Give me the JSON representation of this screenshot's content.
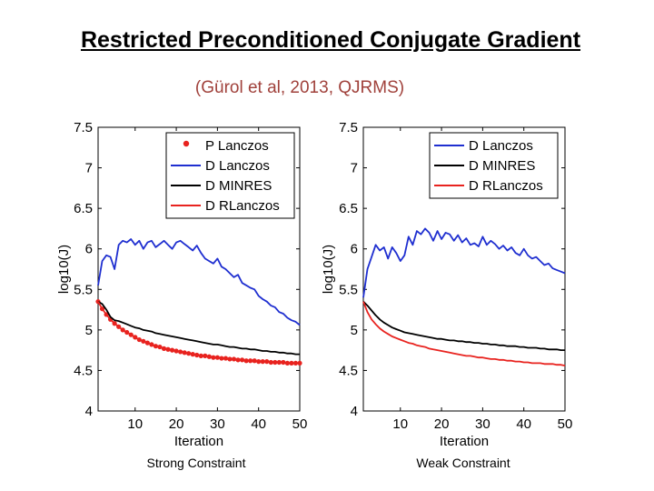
{
  "slide": {
    "title": "Restricted Preconditioned Conjugate Gradient",
    "subtitle": "(Gürol et al, 2013, QJRMS)",
    "captions": [
      "Strong Constraint",
      "Weak Constraint"
    ]
  },
  "colors": {
    "blue": "#1f2fd0",
    "black": "#000000",
    "red": "#e8231f",
    "subtitle": "#a0413b"
  },
  "chart_data": [
    {
      "type": "line",
      "title": "",
      "xlabel": "Iteration",
      "ylabel": "log10(J)",
      "xlim": [
        1,
        50
      ],
      "ylim": [
        4,
        7.5
      ],
      "xticks": [
        "10",
        "20",
        "30",
        "40",
        "50"
      ],
      "yticks": [
        "4",
        "4.5",
        "5",
        "5.5",
        "6",
        "6.5",
        "7",
        "7.5"
      ],
      "legend_position": "top-right",
      "series": [
        {
          "name": "P Lanczos",
          "color": "#e8231f",
          "style": "markers",
          "x": [
            1,
            2,
            3,
            4,
            5,
            6,
            7,
            8,
            9,
            10,
            11,
            12,
            13,
            14,
            15,
            16,
            17,
            18,
            19,
            20,
            21,
            22,
            23,
            24,
            25,
            26,
            27,
            28,
            29,
            30,
            31,
            32,
            33,
            34,
            35,
            36,
            37,
            38,
            39,
            40,
            41,
            42,
            43,
            44,
            45,
            46,
            47,
            48,
            49,
            50
          ],
          "y": [
            5.35,
            5.26,
            5.19,
            5.13,
            5.08,
            5.04,
            5.0,
            4.97,
            4.94,
            4.91,
            4.88,
            4.86,
            4.84,
            4.82,
            4.8,
            4.79,
            4.77,
            4.76,
            4.75,
            4.74,
            4.73,
            4.72,
            4.71,
            4.7,
            4.69,
            4.68,
            4.68,
            4.67,
            4.66,
            4.66,
            4.65,
            4.65,
            4.64,
            4.64,
            4.63,
            4.63,
            4.62,
            4.62,
            4.62,
            4.61,
            4.61,
            4.61,
            4.6,
            4.6,
            4.6,
            4.6,
            4.59,
            4.59,
            4.59,
            4.59
          ]
        },
        {
          "name": "D Lanczos",
          "color": "#1f2fd0",
          "style": "line",
          "x": [
            1,
            2,
            3,
            4,
            5,
            6,
            7,
            8,
            9,
            10,
            11,
            12,
            13,
            14,
            15,
            16,
            17,
            18,
            19,
            20,
            21,
            22,
            23,
            24,
            25,
            26,
            27,
            28,
            29,
            30,
            31,
            32,
            33,
            34,
            35,
            36,
            37,
            38,
            39,
            40,
            41,
            42,
            43,
            44,
            45,
            46,
            47,
            48,
            49,
            50
          ],
          "y": [
            5.55,
            5.85,
            5.92,
            5.9,
            5.75,
            6.05,
            6.1,
            6.08,
            6.12,
            6.05,
            6.1,
            6.0,
            6.08,
            6.1,
            6.02,
            6.06,
            6.1,
            6.05,
            6.0,
            6.08,
            6.1,
            6.06,
            6.02,
            5.98,
            6.04,
            5.95,
            5.88,
            5.85,
            5.82,
            5.88,
            5.78,
            5.75,
            5.7,
            5.65,
            5.68,
            5.58,
            5.55,
            5.52,
            5.5,
            5.42,
            5.38,
            5.35,
            5.3,
            5.28,
            5.22,
            5.2,
            5.15,
            5.12,
            5.1,
            5.06
          ]
        },
        {
          "name": "D MINRES",
          "color": "#000000",
          "style": "line",
          "x": [
            1,
            2,
            3,
            4,
            5,
            6,
            7,
            8,
            9,
            10,
            11,
            12,
            13,
            14,
            15,
            16,
            17,
            18,
            19,
            20,
            21,
            22,
            23,
            24,
            25,
            26,
            27,
            28,
            29,
            30,
            31,
            32,
            33,
            34,
            35,
            36,
            37,
            38,
            39,
            40,
            41,
            42,
            43,
            44,
            45,
            46,
            47,
            48,
            49,
            50
          ],
          "y": [
            5.35,
            5.32,
            5.25,
            5.16,
            5.12,
            5.11,
            5.09,
            5.07,
            5.05,
            5.03,
            5.02,
            5.0,
            4.99,
            4.98,
            4.96,
            4.95,
            4.94,
            4.93,
            4.92,
            4.91,
            4.9,
            4.89,
            4.88,
            4.87,
            4.86,
            4.85,
            4.84,
            4.83,
            4.82,
            4.82,
            4.81,
            4.8,
            4.79,
            4.79,
            4.78,
            4.77,
            4.77,
            4.76,
            4.76,
            4.75,
            4.74,
            4.74,
            4.73,
            4.73,
            4.72,
            4.72,
            4.71,
            4.71,
            4.7,
            4.7
          ]
        },
        {
          "name": "D RLanczos",
          "color": "#e8231f",
          "style": "line",
          "x": [
            1,
            2,
            3,
            4,
            5,
            6,
            7,
            8,
            9,
            10,
            11,
            12,
            13,
            14,
            15,
            16,
            17,
            18,
            19,
            20,
            21,
            22,
            23,
            24,
            25,
            26,
            27,
            28,
            29,
            30,
            31,
            32,
            33,
            34,
            35,
            36,
            37,
            38,
            39,
            40,
            41,
            42,
            43,
            44,
            45,
            46,
            47,
            48,
            49,
            50
          ],
          "y": [
            5.35,
            5.26,
            5.19,
            5.13,
            5.08,
            5.04,
            5.0,
            4.97,
            4.94,
            4.91,
            4.88,
            4.86,
            4.84,
            4.82,
            4.8,
            4.79,
            4.77,
            4.76,
            4.75,
            4.74,
            4.73,
            4.72,
            4.71,
            4.7,
            4.69,
            4.68,
            4.68,
            4.67,
            4.66,
            4.66,
            4.65,
            4.65,
            4.64,
            4.64,
            4.63,
            4.63,
            4.62,
            4.62,
            4.62,
            4.61,
            4.61,
            4.61,
            4.6,
            4.6,
            4.6,
            4.6,
            4.59,
            4.59,
            4.59,
            4.59
          ]
        }
      ]
    },
    {
      "type": "line",
      "title": "",
      "xlabel": "Iteration",
      "ylabel": "log10(J)",
      "xlim": [
        1,
        50
      ],
      "ylim": [
        4,
        7.5
      ],
      "xticks": [
        "10",
        "20",
        "30",
        "40",
        "50"
      ],
      "yticks": [
        "4",
        "4.5",
        "5",
        "5.5",
        "6",
        "6.5",
        "7",
        "7.5"
      ],
      "legend_position": "top-right",
      "series": [
        {
          "name": "D Lanczos",
          "color": "#1f2fd0",
          "style": "line",
          "x": [
            1,
            2,
            3,
            4,
            5,
            6,
            7,
            8,
            9,
            10,
            11,
            12,
            13,
            14,
            15,
            16,
            17,
            18,
            19,
            20,
            21,
            22,
            23,
            24,
            25,
            26,
            27,
            28,
            29,
            30,
            31,
            32,
            33,
            34,
            35,
            36,
            37,
            38,
            39,
            40,
            41,
            42,
            43,
            44,
            45,
            46,
            47,
            48,
            49,
            50
          ],
          "y": [
            5.4,
            5.75,
            5.9,
            6.05,
            5.98,
            6.02,
            5.88,
            6.02,
            5.95,
            5.85,
            5.92,
            6.15,
            6.05,
            6.22,
            6.18,
            6.25,
            6.2,
            6.1,
            6.22,
            6.12,
            6.2,
            6.18,
            6.1,
            6.17,
            6.08,
            6.13,
            6.05,
            6.07,
            6.03,
            6.15,
            6.05,
            6.1,
            6.06,
            6.0,
            6.04,
            5.98,
            6.02,
            5.95,
            5.92,
            6.0,
            5.92,
            5.88,
            5.9,
            5.85,
            5.8,
            5.82,
            5.76,
            5.74,
            5.72,
            5.7
          ]
        },
        {
          "name": "D MINRES",
          "color": "#000000",
          "style": "line",
          "x": [
            1,
            2,
            3,
            4,
            5,
            6,
            7,
            8,
            9,
            10,
            11,
            12,
            13,
            14,
            15,
            16,
            17,
            18,
            19,
            20,
            21,
            22,
            23,
            24,
            25,
            26,
            27,
            28,
            29,
            30,
            31,
            32,
            33,
            34,
            35,
            36,
            37,
            38,
            39,
            40,
            41,
            42,
            43,
            44,
            45,
            46,
            47,
            48,
            49,
            50
          ],
          "y": [
            5.35,
            5.3,
            5.24,
            5.18,
            5.13,
            5.09,
            5.06,
            5.03,
            5.01,
            4.99,
            4.97,
            4.96,
            4.95,
            4.94,
            4.93,
            4.92,
            4.91,
            4.9,
            4.89,
            4.89,
            4.88,
            4.87,
            4.87,
            4.86,
            4.86,
            4.85,
            4.85,
            4.84,
            4.84,
            4.83,
            4.83,
            4.82,
            4.82,
            4.81,
            4.81,
            4.8,
            4.8,
            4.8,
            4.79,
            4.79,
            4.78,
            4.78,
            4.78,
            4.77,
            4.77,
            4.76,
            4.76,
            4.76,
            4.75,
            4.75
          ]
        },
        {
          "name": "D RLanczos",
          "color": "#e8231f",
          "style": "line",
          "x": [
            1,
            2,
            3,
            4,
            5,
            6,
            7,
            8,
            9,
            10,
            11,
            12,
            13,
            14,
            15,
            16,
            17,
            18,
            19,
            20,
            21,
            22,
            23,
            24,
            25,
            26,
            27,
            28,
            29,
            30,
            31,
            32,
            33,
            34,
            35,
            36,
            37,
            38,
            39,
            40,
            41,
            42,
            43,
            44,
            45,
            46,
            47,
            48,
            49,
            50
          ],
          "y": [
            5.35,
            5.22,
            5.13,
            5.07,
            5.02,
            4.98,
            4.95,
            4.92,
            4.9,
            4.88,
            4.86,
            4.84,
            4.83,
            4.81,
            4.8,
            4.79,
            4.77,
            4.76,
            4.75,
            4.74,
            4.73,
            4.72,
            4.71,
            4.7,
            4.69,
            4.68,
            4.68,
            4.67,
            4.66,
            4.66,
            4.65,
            4.64,
            4.64,
            4.63,
            4.63,
            4.62,
            4.62,
            4.61,
            4.61,
            4.6,
            4.6,
            4.59,
            4.59,
            4.59,
            4.58,
            4.58,
            4.58,
            4.57,
            4.57,
            4.56
          ]
        }
      ]
    }
  ]
}
